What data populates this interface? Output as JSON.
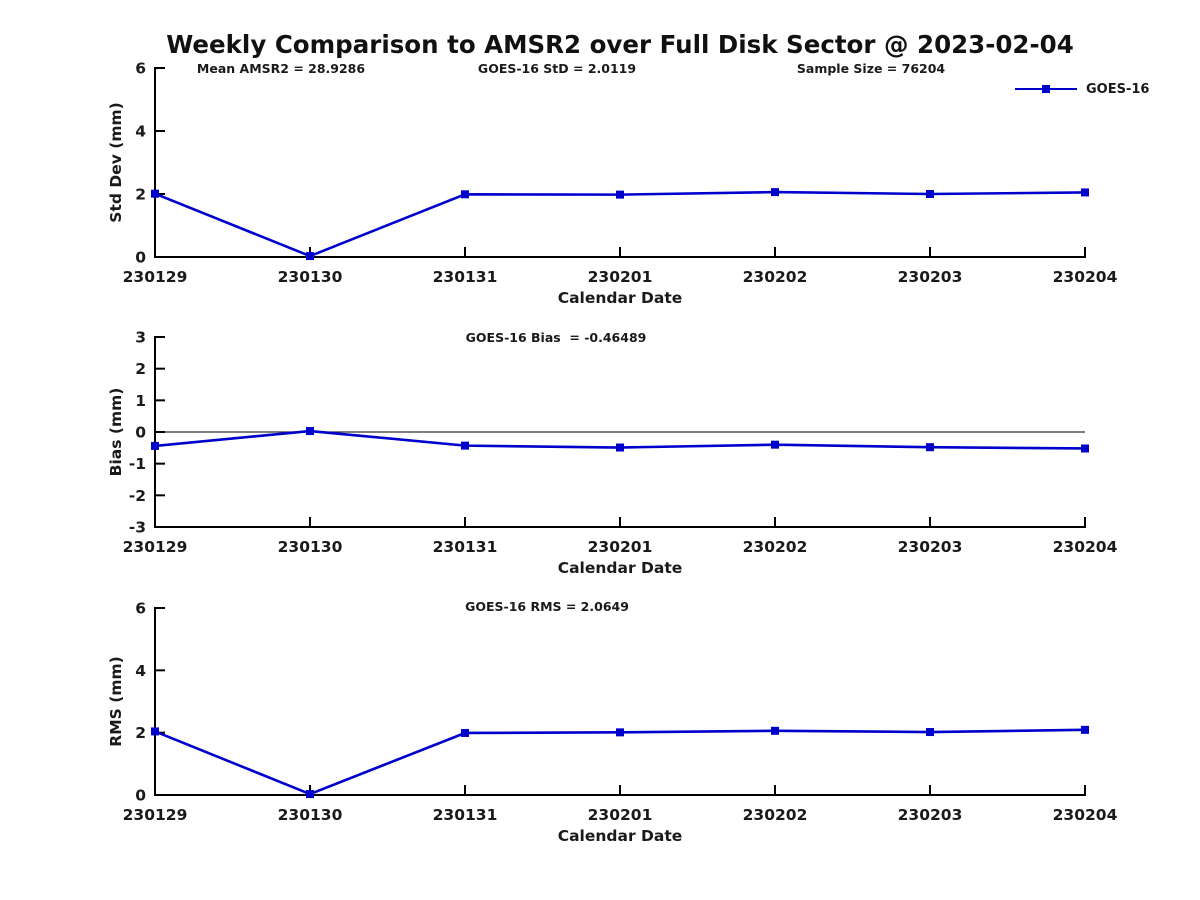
{
  "title": "Weekly Comparison to AMSR2 over Full Disk Sector @ 2023-02-04",
  "legend": {
    "label": "GOES-16",
    "marker": "filled-square"
  },
  "colors": {
    "line_blue": "#0000cd",
    "axis_black": "#000000",
    "text_dark": "#1a1a1a",
    "zero_line": "#333333",
    "background": "#ffffff"
  },
  "chart_data": [
    {
      "type": "line",
      "name": "std-dev",
      "categories": [
        "230129",
        "230130",
        "230131",
        "230201",
        "230202",
        "230203",
        "230204"
      ],
      "series": [
        {
          "name": "GOES-16",
          "values": [
            2.01,
            0.03,
            1.99,
            1.98,
            2.06,
            2.0,
            2.05
          ]
        }
      ],
      "xlabel": "Calendar Date",
      "ylabel": "Std Dev (mm)",
      "ylim": [
        0,
        6
      ],
      "yticks": [
        0,
        2,
        4,
        6
      ],
      "grid": false,
      "zero_line": false,
      "legend_position": "top-right",
      "annotations": [
        "Mean AMSR2 = 28.9286",
        "GOES-16 StD = 2.0119",
        "Sample Size = 76204"
      ]
    },
    {
      "type": "line",
      "name": "bias",
      "categories": [
        "230129",
        "230130",
        "230131",
        "230201",
        "230202",
        "230203",
        "230204"
      ],
      "series": [
        {
          "name": "GOES-16",
          "values": [
            -0.44,
            0.03,
            -0.43,
            -0.49,
            -0.4,
            -0.48,
            -0.52
          ]
        }
      ],
      "xlabel": "Calendar Date",
      "ylabel": "Bias (mm)",
      "ylim": [
        -3,
        3
      ],
      "yticks": [
        -3,
        -2,
        -1,
        0,
        1,
        2,
        3
      ],
      "grid": false,
      "zero_line": true,
      "annotations": [
        "GOES-16 Bias  = -0.46489"
      ]
    },
    {
      "type": "line",
      "name": "rms",
      "categories": [
        "230129",
        "230130",
        "230131",
        "230201",
        "230202",
        "230203",
        "230204"
      ],
      "series": [
        {
          "name": "GOES-16",
          "values": [
            2.04,
            0.03,
            1.99,
            2.01,
            2.06,
            2.02,
            2.09
          ]
        }
      ],
      "xlabel": "Calendar Date",
      "ylabel": "RMS (mm)",
      "ylim": [
        0,
        6
      ],
      "yticks": [
        0,
        2,
        4,
        6
      ],
      "grid": false,
      "zero_line": false,
      "annotations": [
        "GOES-16 RMS = 2.0649"
      ]
    }
  ]
}
